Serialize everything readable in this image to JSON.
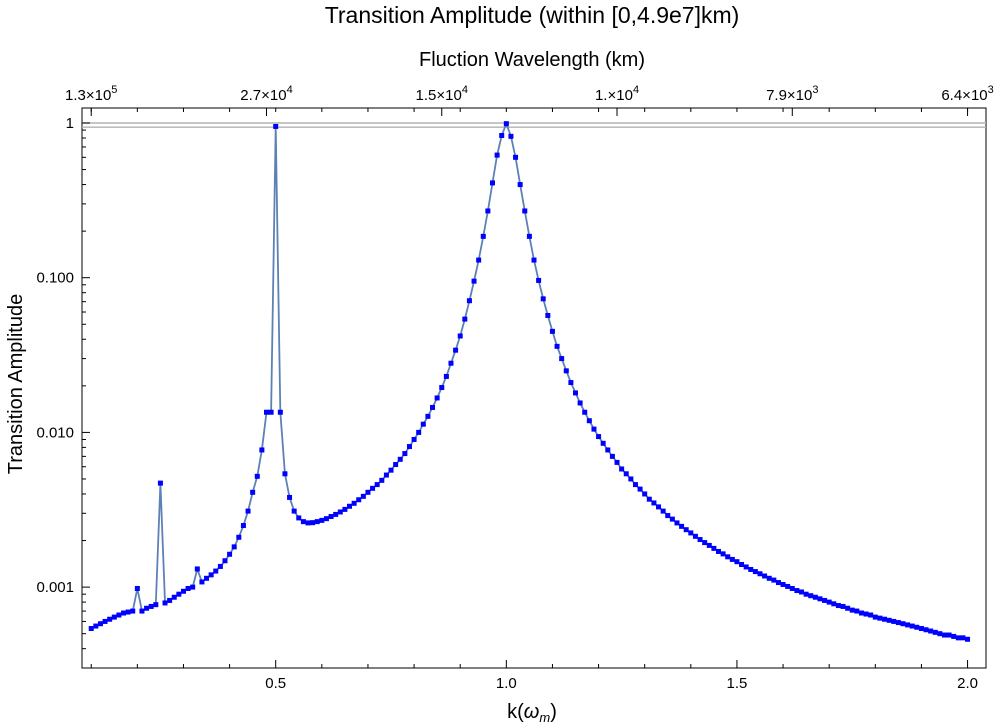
{
  "chart_data": {
    "type": "line",
    "title": "Transition Amplitude (within [0,4.9e7]km)",
    "xlabel_base": "k(",
    "xlabel_symbol": "ω",
    "xlabel_subscript": "m",
    "xlabel_close": ")",
    "ylabel": "Transition Amplitude",
    "top_axis_label": "Fluction Wavelength (km)",
    "xlim": [
      0.08,
      2.04
    ],
    "ylim": [
      0.0003,
      1.25
    ],
    "y_scale": "log",
    "x_ticks": [
      {
        "value": 0.5,
        "label": "0.5"
      },
      {
        "value": 1.0,
        "label": "1.0"
      },
      {
        "value": 1.5,
        "label": "1.5"
      },
      {
        "value": 2.0,
        "label": "2.0"
      }
    ],
    "y_ticks": [
      {
        "value": 1,
        "label": "1"
      },
      {
        "value": 0.1,
        "label": "0.100"
      },
      {
        "value": 0.01,
        "label": "0.010"
      },
      {
        "value": 0.001,
        "label": "0.001"
      }
    ],
    "top_ticks": [
      {
        "value": 0.1,
        "mantissa": "1.3",
        "times": "×",
        "base": "10",
        "exp": "5"
      },
      {
        "value": 0.48,
        "mantissa": "2.7",
        "times": "×",
        "base": "10",
        "exp": "4"
      },
      {
        "value": 0.86,
        "mantissa": "1.5",
        "times": "×",
        "base": "10",
        "exp": "4"
      },
      {
        "value": 1.24,
        "mantissa": "1.",
        "times": "×",
        "base": "10",
        "exp": "4"
      },
      {
        "value": 1.62,
        "mantissa": "7.9",
        "times": "×",
        "base": "10",
        "exp": "3"
      },
      {
        "value": 2.0,
        "mantissa": "6.4",
        "times": "×",
        "base": "10",
        "exp": "3"
      }
    ],
    "reference_lines_y": [
      1.0,
      0.94
    ],
    "series": [
      {
        "x": [
          0.1,
          0.11,
          0.12,
          0.13,
          0.14,
          0.15,
          0.16,
          0.17,
          0.18,
          0.19,
          0.2,
          0.21,
          0.22,
          0.23,
          0.24,
          0.25,
          0.26,
          0.27,
          0.28,
          0.29,
          0.3,
          0.31,
          0.32,
          0.33,
          0.34,
          0.35,
          0.36,
          0.37,
          0.38,
          0.39,
          0.4,
          0.41,
          0.42,
          0.43,
          0.44,
          0.45,
          0.46,
          0.47,
          0.48,
          0.49,
          0.5,
          0.51,
          0.52,
          0.53,
          0.54,
          0.55,
          0.56,
          0.57,
          0.58,
          0.59,
          0.6,
          0.61,
          0.62,
          0.63,
          0.64,
          0.65,
          0.66,
          0.67,
          0.68,
          0.69,
          0.7,
          0.71,
          0.72,
          0.73,
          0.74,
          0.75,
          0.76,
          0.77,
          0.78,
          0.79,
          0.8,
          0.81,
          0.82,
          0.83,
          0.84,
          0.85,
          0.86,
          0.87,
          0.88,
          0.89,
          0.9,
          0.91,
          0.92,
          0.93,
          0.94,
          0.95,
          0.96,
          0.97,
          0.98,
          0.99,
          1.0,
          1.01,
          1.02,
          1.03,
          1.04,
          1.05,
          1.06,
          1.07,
          1.08,
          1.09,
          1.1,
          1.11,
          1.12,
          1.13,
          1.14,
          1.15,
          1.16,
          1.17,
          1.18,
          1.19,
          1.2,
          1.21,
          1.22,
          1.23,
          1.24,
          1.25,
          1.26,
          1.27,
          1.28,
          1.29,
          1.3,
          1.31,
          1.32,
          1.33,
          1.34,
          1.35,
          1.36,
          1.37,
          1.38,
          1.39,
          1.4,
          1.41,
          1.42,
          1.43,
          1.44,
          1.45,
          1.46,
          1.47,
          1.48,
          1.49,
          1.5,
          1.51,
          1.52,
          1.53,
          1.54,
          1.55,
          1.56,
          1.57,
          1.58,
          1.59,
          1.6,
          1.61,
          1.62,
          1.63,
          1.64,
          1.65,
          1.66,
          1.67,
          1.68,
          1.69,
          1.7,
          1.71,
          1.72,
          1.73,
          1.74,
          1.75,
          1.76,
          1.77,
          1.78,
          1.79,
          1.8,
          1.81,
          1.82,
          1.83,
          1.84,
          1.85,
          1.86,
          1.87,
          1.88,
          1.89,
          1.9,
          1.91,
          1.92,
          1.93,
          1.94,
          1.95,
          1.96,
          1.97,
          1.98,
          1.99,
          2.0
        ],
        "values": [
          0.00054,
          0.00056,
          0.00058,
          0.0006,
          0.00062,
          0.00064,
          0.00066,
          0.00068,
          0.00069,
          0.0007,
          0.00098,
          0.0007,
          0.00073,
          0.00075,
          0.00077,
          0.0047,
          0.00079,
          0.00082,
          0.00086,
          0.0009,
          0.00094,
          0.00098,
          0.001,
          0.00131,
          0.00108,
          0.00114,
          0.0012,
          0.00127,
          0.00136,
          0.00148,
          0.00163,
          0.00182,
          0.0021,
          0.0025,
          0.0031,
          0.0041,
          0.0052,
          0.0077,
          0.0135,
          0.0135,
          0.95,
          0.0135,
          0.0054,
          0.0038,
          0.0031,
          0.0028,
          0.00265,
          0.0026,
          0.00261,
          0.00265,
          0.0027,
          0.00277,
          0.00286,
          0.00295,
          0.00306,
          0.00318,
          0.00333,
          0.00348,
          0.00367,
          0.00386,
          0.0041,
          0.00435,
          0.0046,
          0.0049,
          0.0053,
          0.0057,
          0.0062,
          0.0067,
          0.0073,
          0.0081,
          0.009,
          0.01,
          0.0113,
          0.0127,
          0.0145,
          0.0167,
          0.0195,
          0.023,
          0.028,
          0.034,
          0.042,
          0.054,
          0.071,
          0.095,
          0.13,
          0.185,
          0.27,
          0.41,
          0.62,
          0.83,
          0.99,
          0.82,
          0.6,
          0.4,
          0.27,
          0.185,
          0.13,
          0.096,
          0.073,
          0.057,
          0.045,
          0.036,
          0.03,
          0.025,
          0.021,
          0.018,
          0.0155,
          0.0135,
          0.0119,
          0.0105,
          0.0094,
          0.0085,
          0.0077,
          0.007,
          0.0064,
          0.0058,
          0.0054,
          0.005,
          0.0046,
          0.0043,
          0.004,
          0.0037,
          0.0035,
          0.0033,
          0.0031,
          0.0029,
          0.00275,
          0.0026,
          0.00247,
          0.00235,
          0.00224,
          0.00213,
          0.00203,
          0.00194,
          0.00186,
          0.00178,
          0.0017,
          0.00164,
          0.00157,
          0.00151,
          0.00146,
          0.0014,
          0.00135,
          0.0013,
          0.00126,
          0.00122,
          0.00118,
          0.00114,
          0.00111,
          0.00107,
          0.00104,
          0.00101,
          0.00098,
          0.00095,
          0.00093,
          0.0009,
          0.00088,
          0.00086,
          0.00084,
          0.00082,
          0.0008,
          0.00078,
          0.00076,
          0.00075,
          0.00073,
          0.00071,
          0.0007,
          0.00068,
          0.00067,
          0.00066,
          0.00064,
          0.00063,
          0.00062,
          0.00061,
          0.0006,
          0.00059,
          0.00058,
          0.00057,
          0.00056,
          0.00055,
          0.00054,
          0.00053,
          0.00052,
          0.00051,
          0.0005,
          0.00049,
          0.00049,
          0.00048,
          0.00047,
          0.00047,
          0.00046
        ]
      }
    ],
    "colors": {
      "line": "#5e81b5",
      "marker": "#0000ff",
      "reference_line": "#b3b3b3",
      "frame": "#000000"
    },
    "grid": false,
    "legend": "none"
  }
}
